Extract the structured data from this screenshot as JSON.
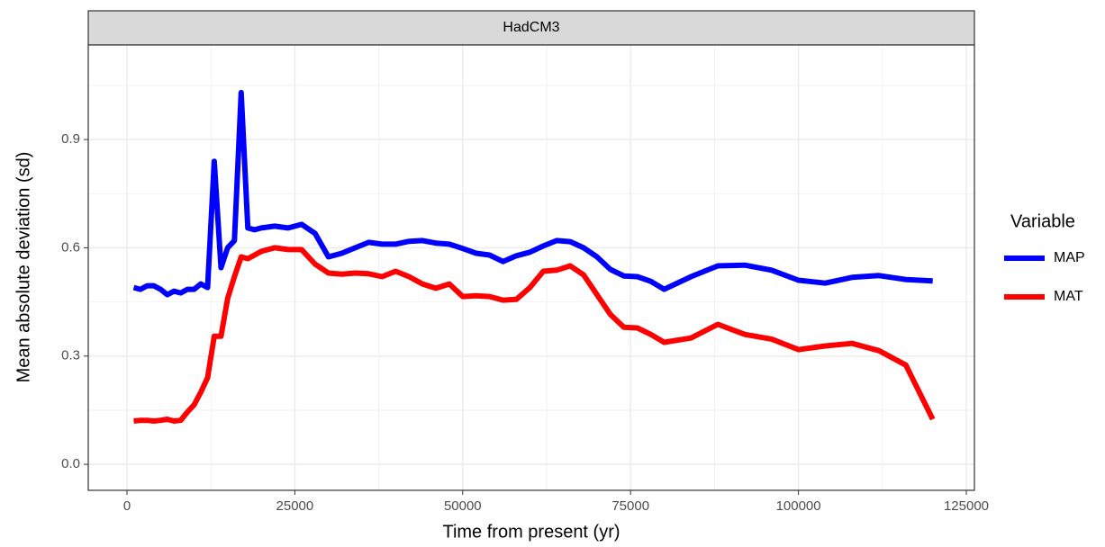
{
  "chart_data": {
    "type": "line",
    "strip": "HadCM3",
    "x_label": "Time from present (yr)",
    "y_label": "Mean absolute deviation (sd)",
    "legend_title": "Variable",
    "legend_position": "right",
    "grid": true,
    "minor_grid": true,
    "x": [
      1000,
      2000,
      3000,
      4000,
      5000,
      6000,
      7000,
      8000,
      9000,
      10000,
      11000,
      12000,
      13000,
      14000,
      15000,
      16000,
      17000,
      18000,
      19000,
      20000,
      22000,
      24000,
      26000,
      28000,
      30000,
      32000,
      34000,
      36000,
      38000,
      40000,
      42000,
      44000,
      46000,
      48000,
      50000,
      52000,
      54000,
      56000,
      58000,
      60000,
      62000,
      64000,
      66000,
      68000,
      70000,
      72000,
      74000,
      76000,
      78000,
      80000,
      84000,
      88000,
      92000,
      96000,
      100000,
      104000,
      108000,
      112000,
      116000,
      120000
    ],
    "series": [
      {
        "name": "MAP",
        "color": "#0000ff",
        "values": [
          0.49,
          0.485,
          0.495,
          0.495,
          0.485,
          0.47,
          0.48,
          0.475,
          0.485,
          0.485,
          0.5,
          0.49,
          0.84,
          0.545,
          0.6,
          0.62,
          1.03,
          0.655,
          0.65,
          0.655,
          0.66,
          0.655,
          0.665,
          0.64,
          0.575,
          0.585,
          0.6,
          0.615,
          0.61,
          0.61,
          0.618,
          0.62,
          0.613,
          0.61,
          0.598,
          0.585,
          0.58,
          0.562,
          0.578,
          0.588,
          0.605,
          0.62,
          0.617,
          0.6,
          0.575,
          0.54,
          0.522,
          0.52,
          0.507,
          0.485,
          0.52,
          0.55,
          0.552,
          0.538,
          0.51,
          0.502,
          0.518,
          0.523,
          0.512,
          0.508
        ]
      },
      {
        "name": "MAT",
        "color": "#ff0000",
        "values": [
          0.12,
          0.122,
          0.122,
          0.12,
          0.122,
          0.125,
          0.12,
          0.122,
          0.145,
          0.165,
          0.2,
          0.24,
          0.355,
          0.355,
          0.46,
          0.52,
          0.575,
          0.57,
          0.58,
          0.59,
          0.6,
          0.595,
          0.595,
          0.555,
          0.53,
          0.527,
          0.53,
          0.528,
          0.52,
          0.535,
          0.52,
          0.5,
          0.488,
          0.5,
          0.465,
          0.467,
          0.465,
          0.455,
          0.457,
          0.49,
          0.535,
          0.538,
          0.55,
          0.525,
          0.47,
          0.415,
          0.38,
          0.378,
          0.36,
          0.338,
          0.35,
          0.388,
          0.36,
          0.347,
          0.318,
          0.328,
          0.335,
          0.315,
          0.275,
          0.125
        ]
      }
    ],
    "xlim": [
      -5767,
      126207
    ],
    "ylim": [
      -0.072,
      1.162
    ],
    "xticks": [
      0,
      25000,
      50000,
      75000,
      100000,
      125000
    ],
    "yticks": [
      {
        "value": 0,
        "label": "0.0"
      },
      0.3,
      0.6,
      0.9
    ]
  }
}
